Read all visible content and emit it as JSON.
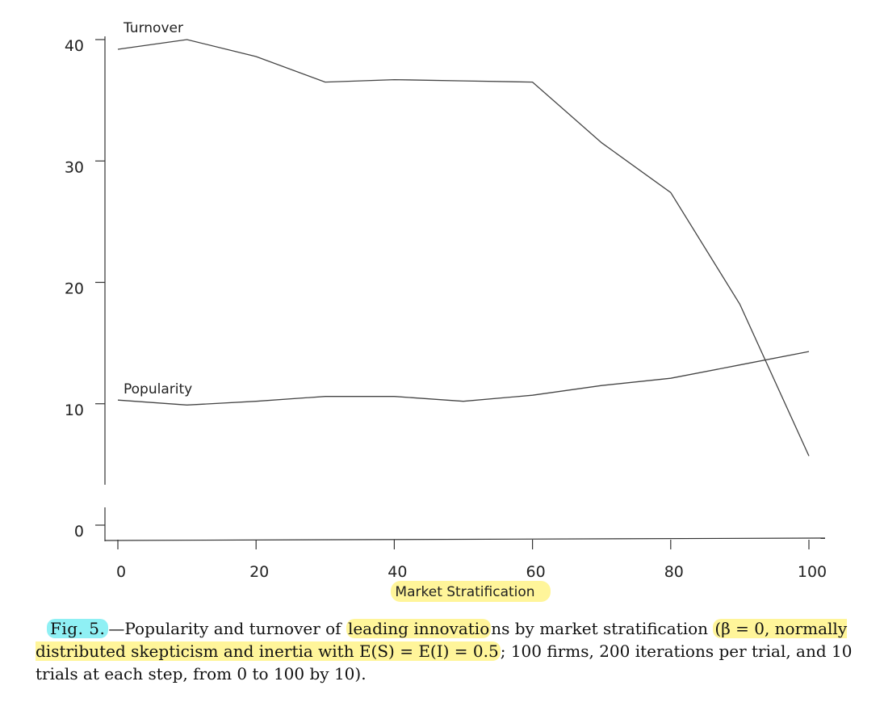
{
  "chart_data": {
    "type": "line",
    "xlabel": "Market Stratification",
    "ylabel": "",
    "xlim": [
      0,
      100
    ],
    "ylim": [
      0,
      40
    ],
    "x_ticks": [
      "0",
      "20",
      "40",
      "60",
      "80",
      "100"
    ],
    "y_ticks": [
      "0",
      "10",
      "20",
      "30",
      "40"
    ],
    "grid": false,
    "legend": "none",
    "series": [
      {
        "name": "Turnover",
        "x": [
          0,
          10,
          20,
          30,
          40,
          50,
          60,
          70,
          80,
          90,
          100
        ],
        "values": [
          39.2,
          40.0,
          38.6,
          36.5,
          36.7,
          36.6,
          36.5,
          31.5,
          27.4,
          18.2,
          5.7
        ]
      },
      {
        "name": "Popularity",
        "x": [
          0,
          10,
          20,
          30,
          40,
          50,
          60,
          70,
          80,
          90,
          100
        ],
        "values": [
          10.3,
          9.9,
          10.2,
          10.6,
          10.6,
          10.2,
          10.7,
          11.5,
          12.1,
          13.2,
          14.3
        ]
      }
    ]
  },
  "caption": {
    "fig_label": "Fig. 5.",
    "dash": "—",
    "text_before_hl": "Popularity and turnover of ",
    "hl_1": "leading innovatio",
    "text_mid_1": "ns by market stratification ",
    "hl_2": "(β = 0, normally distributed skepticism and inertia with E(S) = E(I) = 0.5",
    "text_after": "; 100 firms, 200 iterations per trial, and 10 trials at each step, from 0 to 100 by 10)."
  },
  "colors": {
    "highlight_yellow": "#fff59a",
    "highlight_cyan": "#8ff0f4",
    "line": "#444444"
  }
}
